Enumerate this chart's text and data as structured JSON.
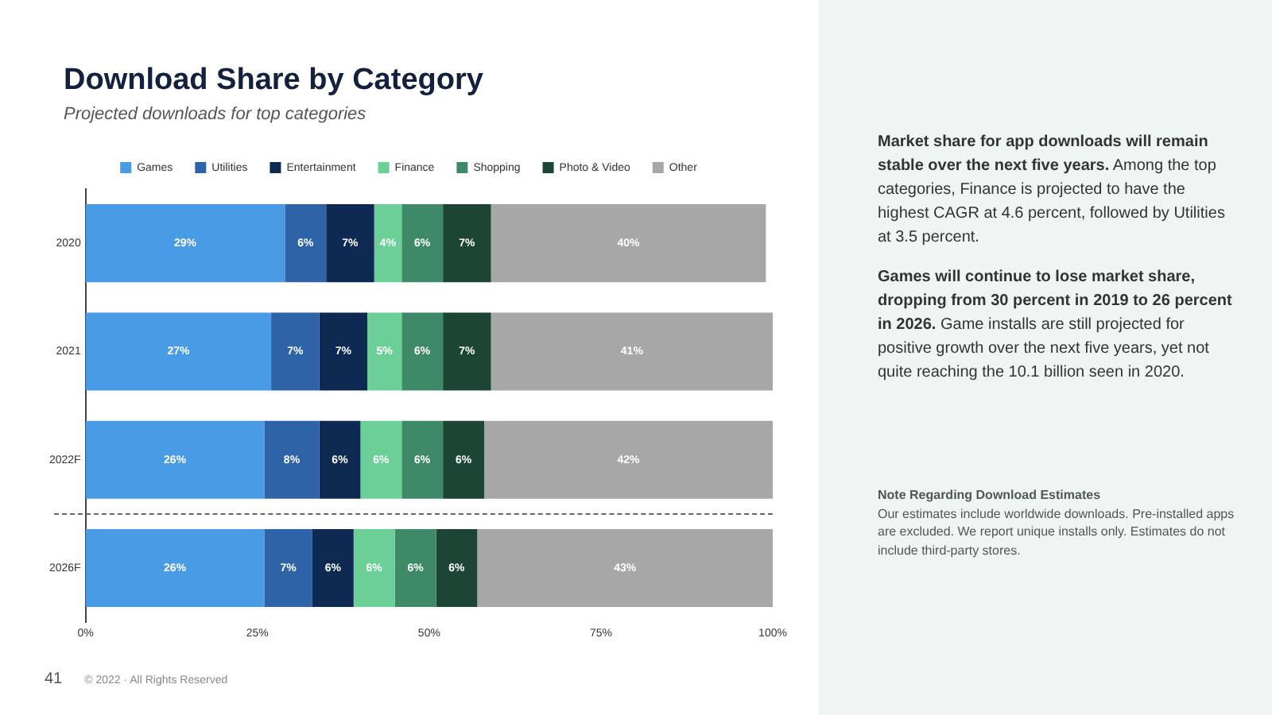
{
  "chart_data": {
    "type": "bar",
    "orientation": "horizontal",
    "stacked": true,
    "title": "Download Share by Category",
    "subtitle": "Projected downloads for top categories",
    "categories": [
      "2020",
      "2021",
      "2022F",
      "2026F"
    ],
    "series": [
      {
        "name": "Games",
        "color": "#4a9be6",
        "values": [
          29,
          27,
          26,
          26
        ],
        "value_labels": [
          "29%",
          "27%",
          "26%",
          "26%"
        ]
      },
      {
        "name": "Utilities",
        "color": "#2f63a8",
        "values": [
          6,
          7,
          8,
          7
        ],
        "value_labels": [
          "6%",
          "7%",
          "8%",
          "7%"
        ]
      },
      {
        "name": "Entertainment",
        "color": "#0e2a52",
        "values": [
          7,
          7,
          6,
          6
        ],
        "value_labels": [
          "7%",
          "7%",
          "6%",
          "6%"
        ]
      },
      {
        "name": "Finance",
        "color": "#6dcf98",
        "values": [
          4,
          5,
          6,
          6
        ],
        "value_labels": [
          "4%",
          "5%",
          "6%",
          "6%"
        ]
      },
      {
        "name": "Shopping",
        "color": "#3e8a68",
        "values": [
          6,
          6,
          6,
          6
        ],
        "value_labels": [
          "6%",
          "6%",
          "6%",
          "6%"
        ]
      },
      {
        "name": "Photo & Video",
        "color": "#1c4536",
        "values": [
          7,
          7,
          6,
          6
        ],
        "value_labels": [
          "7%",
          "7%",
          "6%",
          "6%"
        ]
      },
      {
        "name": "Other",
        "color": "#a7a7a7",
        "values": [
          40,
          41,
          42,
          43
        ],
        "value_labels": [
          "40%",
          "41%",
          "42%",
          "43%"
        ]
      }
    ],
    "xlim": [
      0,
      100
    ],
    "xticks": [
      {
        "value": 0,
        "label": "0%"
      },
      {
        "value": 25,
        "label": "25%"
      },
      {
        "value": 50,
        "label": "50%"
      },
      {
        "value": 75,
        "label": "75%"
      },
      {
        "value": 100,
        "label": "100%"
      }
    ],
    "grid": false,
    "legend": "top",
    "annotations": [
      "Market share for app downloads will remain stable over the next five years.",
      "Among the top categories, Finance is projected to have the highest CAGR at 4.6 percent, followed by Utilities at 3.5 percent.",
      "Games will continue to lose market share, dropping from 30 percent in 2019 to 26 percent in 2026.",
      "Game installs are still projected for positive growth over the next five years, yet not quite reaching the 10.1 billion seen in 2020.",
      "Note Regarding Download Estimates",
      "Our estimates include worldwide downloads. Pre-installed apps are excluded. We report unique installs only. Estimates do not include third-party stores.",
      "41",
      "© 2022 · All Rights Reserved"
    ]
  }
}
